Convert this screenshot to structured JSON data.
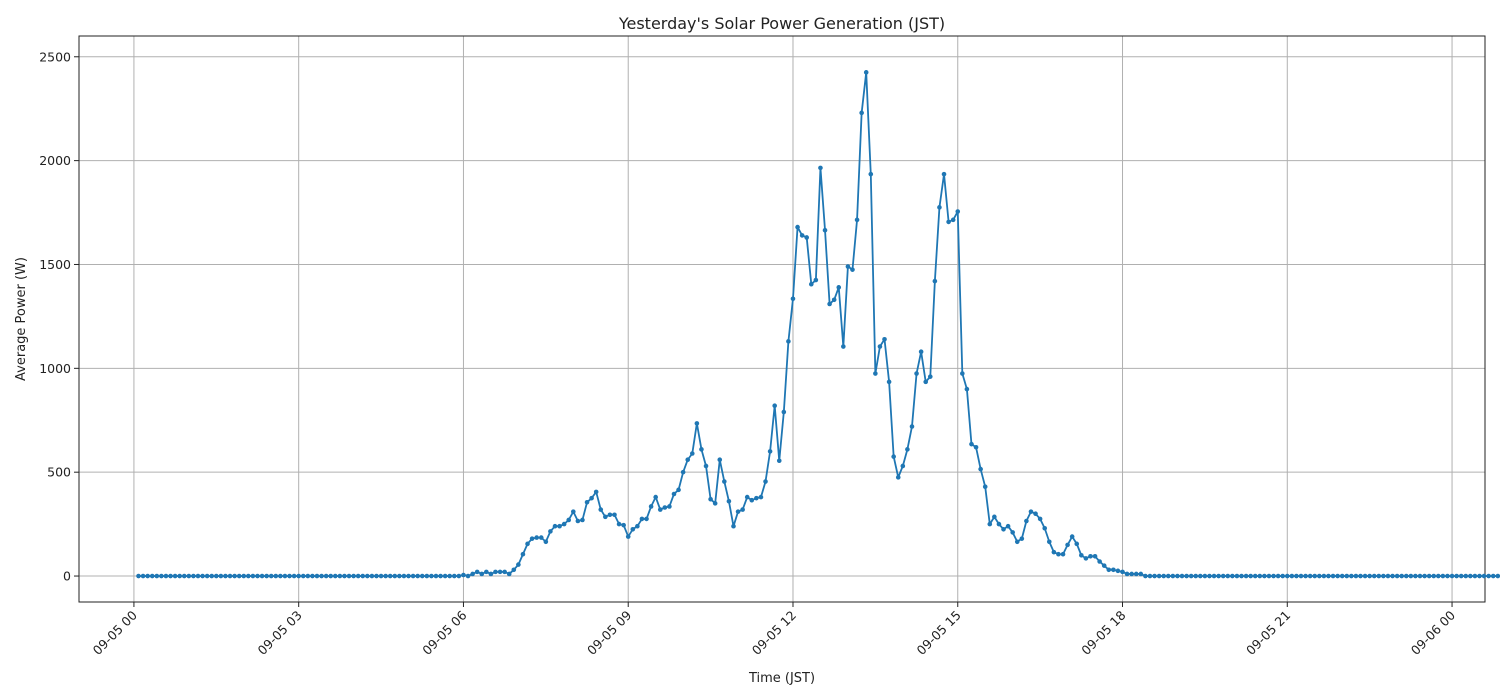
{
  "chart_data": {
    "type": "line",
    "title": "Yesterday's Solar Power Generation (JST)",
    "xlabel": "Time (JST)",
    "ylabel": "Average Power (W)",
    "xlim": [
      "2023-09-04T23:00",
      "2023-09-06T00:36"
    ],
    "ylim": [
      -125,
      2600
    ],
    "grid": true,
    "color": "#1f77b4",
    "x_tick_labels": [
      "09-05 00",
      "09-05 03",
      "09-05 06",
      "09-05 09",
      "09-05 12",
      "09-05 15",
      "09-05 18",
      "09-05 21",
      "09-06 00"
    ],
    "y_tick_labels": [
      "0",
      "500",
      "1000",
      "1500",
      "2000",
      "2500"
    ],
    "series": [
      {
        "name": "",
        "x_start": "2023-09-05T00:05",
        "x_step_minutes": 5,
        "values": [
          0,
          0,
          0,
          0,
          0,
          0,
          0,
          0,
          0,
          0,
          0,
          0,
          0,
          0,
          0,
          0,
          0,
          0,
          0,
          0,
          0,
          0,
          0,
          0,
          0,
          0,
          0,
          0,
          0,
          0,
          0,
          0,
          0,
          0,
          0,
          0,
          0,
          0,
          0,
          0,
          0,
          0,
          0,
          0,
          0,
          0,
          0,
          0,
          0,
          0,
          0,
          0,
          0,
          0,
          0,
          0,
          0,
          0,
          0,
          0,
          0,
          0,
          0,
          0,
          0,
          0,
          0,
          0,
          0,
          0,
          0,
          5,
          0,
          10,
          20,
          10,
          20,
          10,
          20,
          20,
          20,
          10,
          30,
          55,
          105,
          155,
          180,
          185,
          185,
          165,
          215,
          240,
          240,
          250,
          270,
          310,
          265,
          270,
          355,
          375,
          405,
          320,
          285,
          295,
          295,
          250,
          245,
          190,
          225,
          240,
          275,
          275,
          335,
          380,
          320,
          330,
          335,
          395,
          415,
          500,
          560,
          590,
          735,
          610,
          530,
          370,
          350,
          560,
          455,
          360,
          240,
          310,
          320,
          380,
          365,
          375,
          380,
          455,
          600,
          820,
          555,
          790,
          1130,
          1335,
          1680,
          1640,
          1630,
          1405,
          1425,
          1965,
          1665,
          1310,
          1330,
          1390,
          1105,
          1490,
          1475,
          1715,
          2230,
          2425,
          1935,
          975,
          1105,
          1140,
          935,
          575,
          475,
          530,
          610,
          720,
          975,
          1080,
          935,
          960,
          1420,
          1775,
          1935,
          1705,
          1715,
          1755,
          975,
          900,
          635,
          620,
          515,
          430,
          250,
          285,
          250,
          225,
          240,
          210,
          165,
          180,
          265,
          310,
          300,
          275,
          230,
          165,
          115,
          105,
          105,
          150,
          190,
          155,
          100,
          85,
          95,
          95,
          70,
          50,
          30,
          30,
          25,
          20,
          10,
          10,
          10,
          10,
          0,
          0,
          0,
          0,
          0,
          0,
          0,
          0,
          0,
          0,
          0,
          0,
          0,
          0,
          0,
          0,
          0,
          0,
          0,
          0,
          0,
          0,
          0,
          0,
          0,
          0,
          0,
          0,
          0,
          0,
          0,
          0,
          0,
          0,
          0,
          0,
          0,
          0,
          0,
          0,
          0,
          0,
          0,
          0,
          0,
          0,
          0,
          0,
          0,
          0,
          0,
          0,
          0,
          0,
          0,
          0,
          0,
          0,
          0,
          0,
          0,
          0,
          0,
          0,
          0,
          0,
          0,
          0,
          0,
          0,
          0,
          0,
          0,
          0,
          0,
          0,
          0,
          0,
          0,
          0,
          0,
          0,
          0
        ]
      }
    ]
  }
}
